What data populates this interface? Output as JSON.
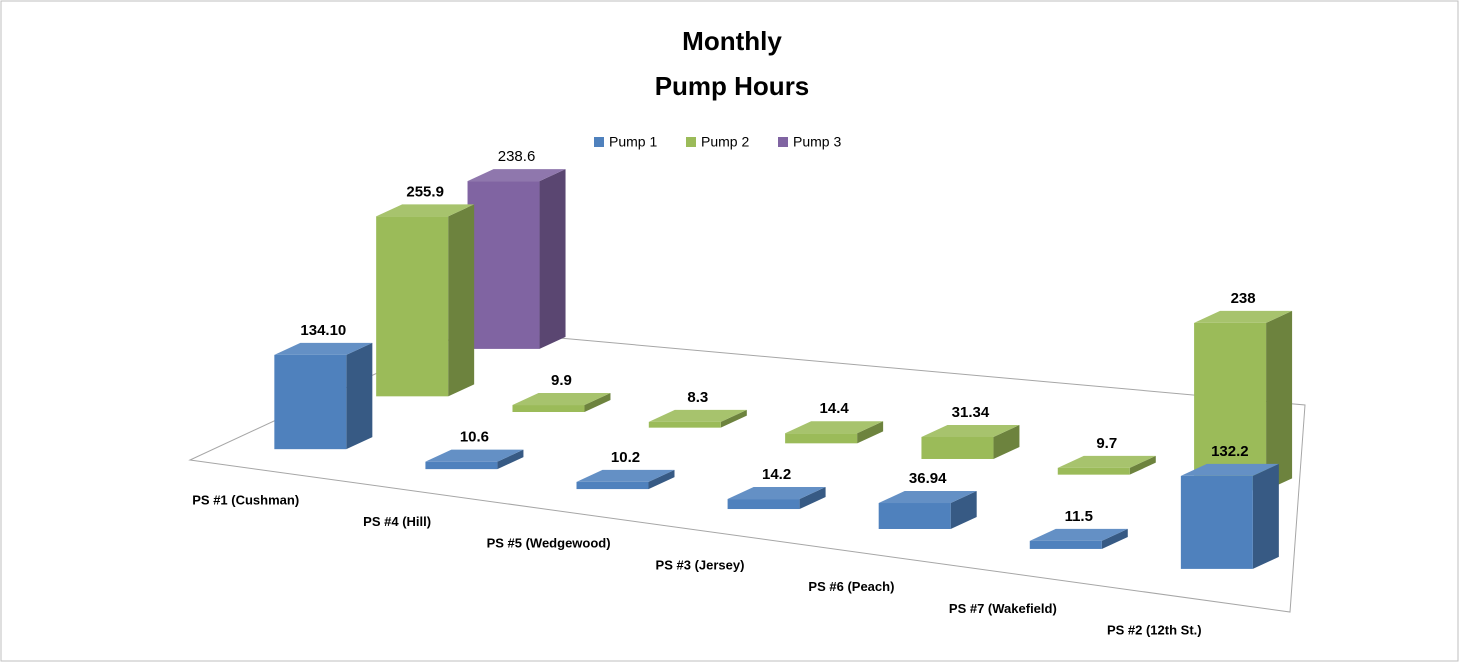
{
  "chart_data": {
    "type": "bar3d",
    "title": [
      "Monthly",
      "Pump Hours"
    ],
    "categories": [
      "PS #1 (Cushman)",
      "PS #4  (Hill)",
      "PS #5  (Wedgewood)",
      "PS #3  (Jersey)",
      "PS #6  (Peach)",
      "PS #7  (Wakefield)",
      "PS #2  (12th St.)"
    ],
    "series": [
      {
        "name": "Pump 1",
        "color": "#4f81bd",
        "values": [
          134.1,
          10.6,
          10.2,
          14.2,
          36.94,
          11.5,
          132.2
        ],
        "value_labels": [
          "134.10",
          "10.6",
          "10.2",
          "14.2",
          "36.94",
          "11.5",
          "132.2"
        ]
      },
      {
        "name": "Pump 2",
        "color": "#9bbb59",
        "values": [
          255.9,
          9.9,
          8.3,
          14.4,
          31.34,
          9.7,
          238
        ]
      },
      {
        "name": "Pump 3",
        "color": "#8064a2",
        "values": [
          238.6,
          null,
          null,
          null,
          null,
          null,
          null
        ]
      }
    ],
    "legend": "top"
  }
}
